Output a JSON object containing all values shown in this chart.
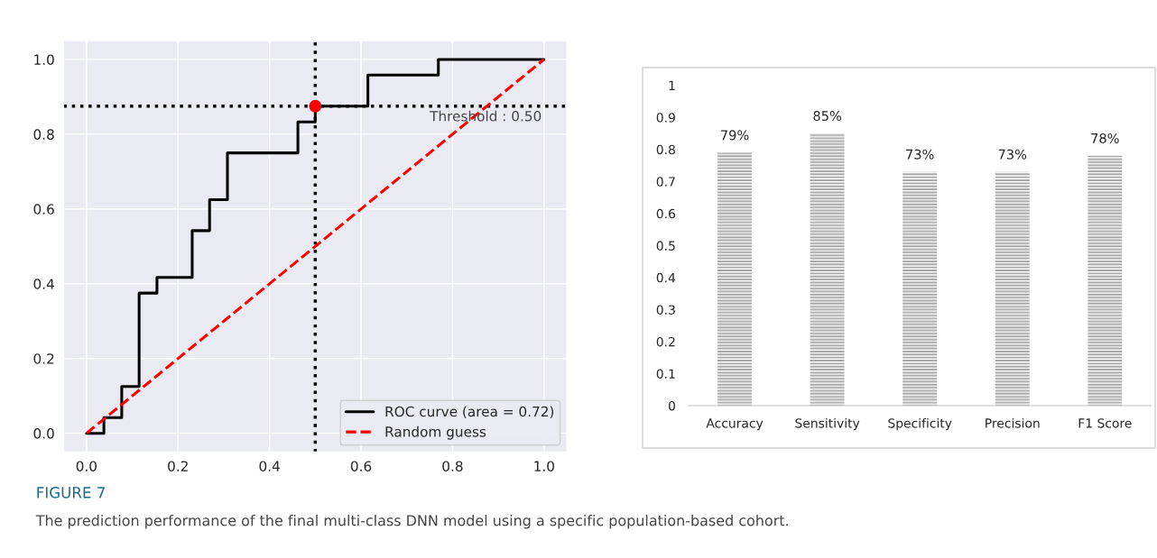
{
  "chart_data": [
    {
      "type": "step",
      "annotations": [
        "Threshold : 0.50",
        "FIGURE 7",
        "The prediction performance of the final multi-class DNN model using a specific population-based cohort."
      ],
      "series": [
        {
          "name": "ROC curve (area = 0.72)",
          "type": "step",
          "color": "#000000",
          "line_style": "solid",
          "x": [
            0,
            0.038,
            0.038,
            0.077,
            0.077,
            0.115,
            0.115,
            0.154,
            0.154,
            0.231,
            0.231,
            0.269,
            0.269,
            0.308,
            0.308,
            0.462,
            0.462,
            0.5,
            0.5,
            0.615,
            0.615,
            0.769,
            0.769,
            1.0
          ],
          "values": [
            0,
            0,
            0.042,
            0.042,
            0.125,
            0.125,
            0.375,
            0.375,
            0.417,
            0.417,
            0.542,
            0.542,
            0.625,
            0.625,
            0.75,
            0.75,
            0.833,
            0.833,
            0.875,
            0.875,
            0.958,
            0.958,
            1.0,
            1.0
          ]
        },
        {
          "name": "Random guess",
          "type": "line",
          "color": "#ff0000",
          "line_style": "dashed",
          "x": [
            0,
            1
          ],
          "values": [
            0,
            1
          ]
        },
        {
          "type": "scatter",
          "color": "#ff0000",
          "marker": "circle",
          "x": [
            0.5
          ],
          "values": [
            0.875
          ]
        }
      ],
      "ref_lines": [
        {
          "axis": "x",
          "value": 0.5,
          "color": "#000000",
          "line_style": "dotted"
        },
        {
          "axis": "y",
          "value": 0.875,
          "color": "#000000",
          "line_style": "dotted"
        }
      ],
      "xlim": [
        -0.05,
        1.05
      ],
      "ylim": [
        -0.05,
        1.05
      ],
      "xticks": [
        {
          "value": 0,
          "label": "0.0"
        },
        {
          "value": 0.2,
          "label": "0.2"
        },
        {
          "value": 0.4,
          "label": "0.4"
        },
        {
          "value": 0.6,
          "label": "0.6"
        },
        {
          "value": 0.8,
          "label": "0.8"
        },
        {
          "value": 1,
          "label": "1.0"
        }
      ],
      "yticks": [
        {
          "value": 0,
          "label": "0.0"
        },
        {
          "value": 0.2,
          "label": "0.2"
        },
        {
          "value": 0.4,
          "label": "0.4"
        },
        {
          "value": 0.6,
          "label": "0.6"
        },
        {
          "value": 0.8,
          "label": "0.8"
        },
        {
          "value": 1,
          "label": "1.0"
        }
      ],
      "grid": true,
      "legend": "bottom right"
    },
    {
      "type": "bar",
      "categories": [
        "Accuracy",
        "Sensitivity",
        "Specificity",
        "Precision",
        "F1 Score"
      ],
      "values": [
        0.79,
        0.85,
        0.73,
        0.73,
        0.78
      ],
      "color": "#a6a6a6",
      "value_labels": [
        "79%",
        "85%",
        "73%",
        "73%",
        "78%"
      ],
      "ylim": [
        0,
        1
      ],
      "yticks": [
        0,
        0.1,
        0.2,
        0.3,
        0.4,
        0.5,
        0.6,
        0.7,
        0.8,
        0.9,
        1
      ],
      "grid": false
    }
  ]
}
